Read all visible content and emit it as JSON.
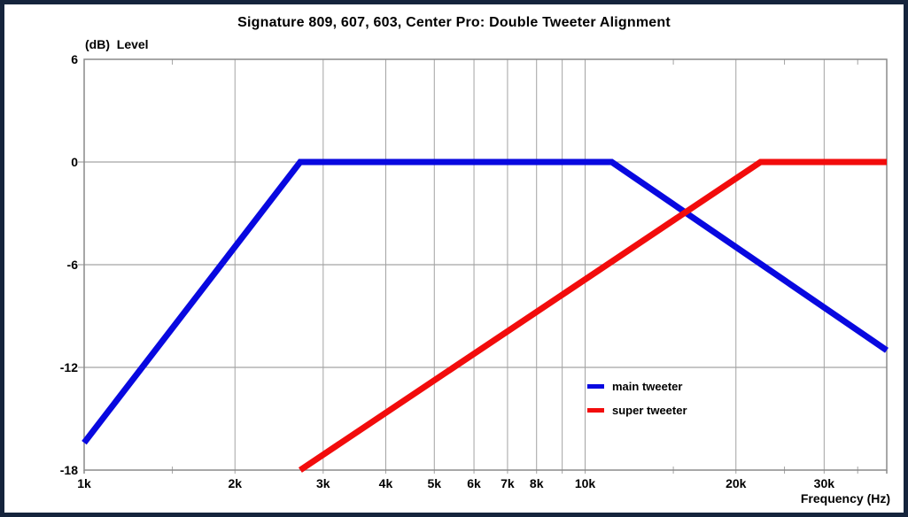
{
  "frame": {
    "border_color": "#15243c",
    "background": "#ffffff"
  },
  "chart_data": {
    "type": "line",
    "title": "Signature 809, 607, 603, Center Pro: Double Tweeter Alignment",
    "ylabel": "(dB)  Level",
    "xlabel": "Frequency (Hz)",
    "x_scale": "log",
    "x_range_hz": [
      1000,
      40000
    ],
    "y_range_db": [
      -18,
      6
    ],
    "grid_on": true,
    "grid_color": "#a3a3a3",
    "axis_color": "#8a8a8a",
    "x_major_ticks": [
      {
        "hz": 1000,
        "label": "1k"
      },
      {
        "hz": 2000,
        "label": "2k"
      },
      {
        "hz": 3000,
        "label": "3k"
      },
      {
        "hz": 4000,
        "label": "4k"
      },
      {
        "hz": 5000,
        "label": "5k"
      },
      {
        "hz": 6000,
        "label": "6k"
      },
      {
        "hz": 7000,
        "label": "7k"
      },
      {
        "hz": 8000,
        "label": "8k"
      },
      {
        "hz": 9000,
        "label": ""
      },
      {
        "hz": 10000,
        "label": "10k"
      },
      {
        "hz": 20000,
        "label": "20k"
      },
      {
        "hz": 30000,
        "label": "30k"
      }
    ],
    "x_minor_ticks_hz": [
      1500,
      15000,
      25000,
      35000
    ],
    "y_ticks": [
      {
        "db": 6,
        "label": "6"
      },
      {
        "db": 0,
        "label": "0"
      },
      {
        "db": -6,
        "label": "-6"
      },
      {
        "db": -12,
        "label": "-12"
      },
      {
        "db": -18,
        "label": "-18"
      }
    ],
    "y_gridlines_db": [
      0,
      -6,
      -12
    ],
    "series": [
      {
        "name": "main tweeter",
        "color": "#0808e0",
        "points_hz_db": [
          [
            1000,
            -16.4
          ],
          [
            2700,
            0
          ],
          [
            11300,
            0
          ],
          [
            40000,
            -11
          ]
        ]
      },
      {
        "name": "super tweeter",
        "color": "#f20c0c",
        "points_hz_db": [
          [
            2700,
            -18
          ],
          [
            22400,
            0
          ],
          [
            40000,
            0
          ]
        ]
      }
    ],
    "legend": {
      "position": "inside plot, right of center, lower middle",
      "items": [
        {
          "label": "main tweeter",
          "color": "#0808e0"
        },
        {
          "label": "super tweeter",
          "color": "#f20c0c"
        }
      ]
    }
  }
}
